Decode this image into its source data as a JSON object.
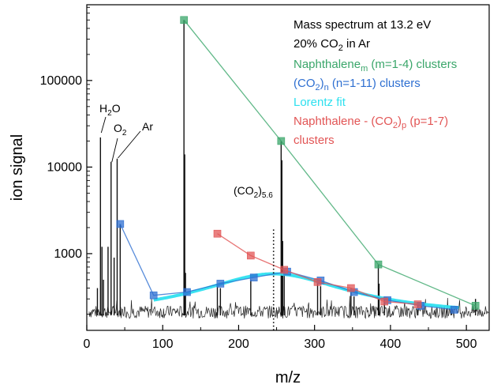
{
  "chart_data": {
    "type": "line",
    "xlabel": "m/z",
    "ylabel": "ion signal",
    "xlim": [
      0,
      530
    ],
    "ylim": [
      130,
      750000
    ],
    "yscale": "log",
    "x_ticks": [
      0,
      100,
      200,
      300,
      400,
      500
    ],
    "y_ticks": [
      {
        "value": 1000,
        "label": "1000"
      },
      {
        "value": 10000,
        "label": "10000"
      },
      {
        "value": 100000,
        "label": "100000"
      }
    ],
    "legend_position": "top-right",
    "legend": [
      {
        "parts": [
          {
            "t": "Mass spectrum at 13.2 eV"
          }
        ],
        "color": "#000000"
      },
      {
        "parts": [
          {
            "t": "20% CO"
          },
          {
            "t": "2",
            "sub": true
          },
          {
            "t": " in Ar"
          }
        ],
        "color": "#000000"
      },
      {
        "parts": [
          {
            "t": "Naphthalene"
          },
          {
            "t": "m",
            "sub": true
          },
          {
            "t": " (m=1-4) clusters"
          }
        ],
        "color": "#3aa66a"
      },
      {
        "parts": [
          {
            "t": "(CO"
          },
          {
            "t": "2",
            "sub": true
          },
          {
            "t": ")"
          },
          {
            "t": "n",
            "sub": true
          },
          {
            "t": " (n=1-11) clusters"
          }
        ],
        "color": "#2e6fd1"
      },
      {
        "parts": [
          {
            "t": "Lorentz fit"
          }
        ],
        "color": "#2ee0ef"
      },
      {
        "parts": [
          {
            "t": "Naphthalene - (CO"
          },
          {
            "t": "2",
            "sub": true
          },
          {
            "t": ")"
          },
          {
            "t": "p",
            "sub": true
          },
          {
            "t": " (p=1-7)"
          }
        ],
        "color": "#e25555"
      },
      {
        "parts": [
          {
            "t": "clusters"
          }
        ],
        "color": "#e25555"
      }
    ],
    "annotations": [
      {
        "x": 18,
        "y": 55000,
        "parts": [
          {
            "t": "H"
          },
          {
            "t": "2",
            "sub": true
          },
          {
            "t": "O"
          }
        ]
      },
      {
        "x": 32,
        "y": 30000,
        "parts": [
          {
            "t": "O"
          },
          {
            "t": "2",
            "sub": true
          }
        ]
      },
      {
        "x": 60,
        "y": 30000,
        "parts": [
          {
            "t": "Ar"
          }
        ]
      },
      {
        "x": 220,
        "y": 2400,
        "parts": [
          {
            "t": "(CO"
          },
          {
            "t": "2",
            "sub": true
          },
          {
            "t": ")"
          },
          {
            "t": "5.6",
            "sub": true
          }
        ]
      }
    ],
    "vline": {
      "x": 246,
      "y_top": 1900,
      "style": "dotted"
    },
    "spectrum_baseline": 215,
    "spectrum_peaks": [
      {
        "x": 14,
        "y": 400
      },
      {
        "x": 18,
        "y": 22000
      },
      {
        "x": 20,
        "y": 1200
      },
      {
        "x": 22,
        "y": 500
      },
      {
        "x": 28,
        "y": 1200
      },
      {
        "x": 32,
        "y": 11500
      },
      {
        "x": 36,
        "y": 900
      },
      {
        "x": 40,
        "y": 12500
      },
      {
        "x": 44,
        "y": 2200
      },
      {
        "x": 128,
        "y": 500000
      },
      {
        "x": 129,
        "y": 14000
      },
      {
        "x": 130,
        "y": 600
      },
      {
        "x": 172,
        "y": 450
      },
      {
        "x": 176,
        "y": 400
      },
      {
        "x": 216,
        "y": 500
      },
      {
        "x": 256,
        "y": 20000
      },
      {
        "x": 257,
        "y": 12000
      },
      {
        "x": 258,
        "y": 1400
      },
      {
        "x": 260,
        "y": 650
      },
      {
        "x": 304,
        "y": 480
      },
      {
        "x": 308,
        "y": 420
      },
      {
        "x": 348,
        "y": 400
      },
      {
        "x": 352,
        "y": 320
      },
      {
        "x": 384,
        "y": 750
      },
      {
        "x": 385,
        "y": 450
      },
      {
        "x": 392,
        "y": 300
      },
      {
        "x": 436,
        "y": 260
      },
      {
        "x": 480,
        "y": 240
      },
      {
        "x": 512,
        "y": 300
      }
    ],
    "series": [
      {
        "name": "Naphthalene_m (m=1-4) clusters",
        "color": "#3aa66a",
        "x": [
          128,
          256,
          384,
          512
        ],
        "y": [
          500000,
          20000,
          750,
          250
        ]
      },
      {
        "name": "(CO2)_n (n=1-11) clusters",
        "color": "#2e6fd1",
        "x": [
          44,
          88,
          132,
          176,
          220,
          264,
          308,
          352,
          396,
          440,
          484
        ],
        "y": [
          2200,
          330,
          360,
          450,
          530,
          620,
          490,
          360,
          290,
          250,
          225
        ]
      },
      {
        "name": "Lorentz fit",
        "color": "#2ee0ef",
        "fit": {
          "x0": 246,
          "amp": 400,
          "gamma": 95,
          "offset": 185
        },
        "x_range": [
          88,
          490
        ]
      },
      {
        "name": "Naphthalene - (CO2)_p (p=1-7) clusters",
        "color": "#e25555",
        "x": [
          172,
          216,
          260,
          304,
          348,
          392,
          436
        ],
        "y": [
          1700,
          950,
          650,
          470,
          400,
          280,
          260
        ]
      }
    ]
  }
}
